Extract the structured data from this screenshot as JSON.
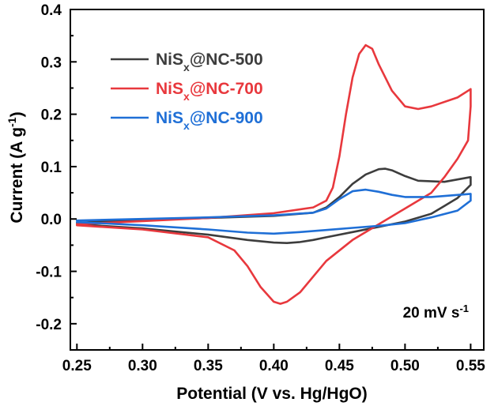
{
  "chart_data": {
    "type": "line",
    "xlabel": "Potential (V vs. Hg/HgO)",
    "ylabel": {
      "base": "Current (A g",
      "sup": "-1",
      "close": ")"
    },
    "xlim": [
      0.245,
      0.56
    ],
    "ylim": [
      -0.25,
      0.4
    ],
    "xticks": [
      0.25,
      0.3,
      0.35,
      0.4,
      0.45,
      0.5,
      0.55
    ],
    "xtick_labels": [
      "0.25",
      "0.30",
      "0.35",
      "0.40",
      "0.45",
      "0.50",
      "0.55"
    ],
    "yticks": [
      -0.2,
      -0.1,
      0.0,
      0.1,
      0.2,
      0.3,
      0.4
    ],
    "ytick_labels": [
      "-0.2",
      "-0.1",
      "0.0",
      "0.1",
      "0.2",
      "0.3",
      "0.4"
    ],
    "grid": false,
    "legend_position": "top-left",
    "annotation": {
      "text": "20 mV s",
      "sup": "-1"
    },
    "series": [
      {
        "legend": {
          "pre": "NiS",
          "sub": "x",
          "post": "@NC-500"
        },
        "color": "#3d3d3d",
        "x": [
          0.25,
          0.3,
          0.35,
          0.4,
          0.43,
          0.44,
          0.45,
          0.46,
          0.47,
          0.48,
          0.485,
          0.49,
          0.5,
          0.51,
          0.53,
          0.55,
          0.55,
          0.54,
          0.53,
          0.52,
          0.5,
          0.48,
          0.46,
          0.44,
          0.43,
          0.42,
          0.41,
          0.4,
          0.38,
          0.35,
          0.3,
          0.25
        ],
        "y": [
          -0.007,
          -0.002,
          0.002,
          0.006,
          0.012,
          0.022,
          0.042,
          0.067,
          0.085,
          0.095,
          0.096,
          0.093,
          0.082,
          0.073,
          0.071,
          0.08,
          0.065,
          0.04,
          0.025,
          0.01,
          -0.005,
          -0.015,
          -0.025,
          -0.035,
          -0.04,
          -0.044,
          -0.046,
          -0.045,
          -0.04,
          -0.03,
          -0.018,
          -0.01
        ]
      },
      {
        "legend": {
          "pre": "NiS",
          "sub": "x",
          "post": "@NC-700"
        },
        "color": "#e8383d",
        "x": [
          0.25,
          0.3,
          0.35,
          0.4,
          0.43,
          0.44,
          0.445,
          0.45,
          0.455,
          0.46,
          0.465,
          0.47,
          0.475,
          0.48,
          0.49,
          0.5,
          0.51,
          0.52,
          0.54,
          0.55,
          0.55,
          0.548,
          0.54,
          0.53,
          0.52,
          0.5,
          0.48,
          0.46,
          0.44,
          0.43,
          0.42,
          0.41,
          0.405,
          0.4,
          0.39,
          0.38,
          0.37,
          0.35,
          0.3,
          0.25
        ],
        "y": [
          -0.01,
          -0.004,
          0.002,
          0.011,
          0.022,
          0.035,
          0.06,
          0.12,
          0.2,
          0.27,
          0.315,
          0.332,
          0.325,
          0.295,
          0.245,
          0.215,
          0.21,
          0.215,
          0.232,
          0.248,
          0.215,
          0.15,
          0.115,
          0.08,
          0.05,
          0.02,
          -0.01,
          -0.04,
          -0.08,
          -0.11,
          -0.14,
          -0.158,
          -0.162,
          -0.158,
          -0.13,
          -0.09,
          -0.06,
          -0.035,
          -0.02,
          -0.012
        ]
      },
      {
        "legend": {
          "pre": "NiS",
          "sub": "x",
          "post": "@NC-900"
        },
        "color": "#1f6fd6",
        "x": [
          0.25,
          0.3,
          0.35,
          0.4,
          0.43,
          0.44,
          0.45,
          0.46,
          0.47,
          0.48,
          0.49,
          0.5,
          0.52,
          0.55,
          0.55,
          0.54,
          0.52,
          0.5,
          0.48,
          0.46,
          0.44,
          0.42,
          0.4,
          0.38,
          0.35,
          0.3,
          0.25
        ],
        "y": [
          -0.003,
          0.0,
          0.003,
          0.007,
          0.012,
          0.02,
          0.038,
          0.053,
          0.056,
          0.052,
          0.046,
          0.042,
          0.042,
          0.048,
          0.035,
          0.016,
          0.003,
          -0.008,
          -0.013,
          -0.017,
          -0.021,
          -0.025,
          -0.028,
          -0.026,
          -0.02,
          -0.012,
          -0.006
        ]
      }
    ]
  }
}
